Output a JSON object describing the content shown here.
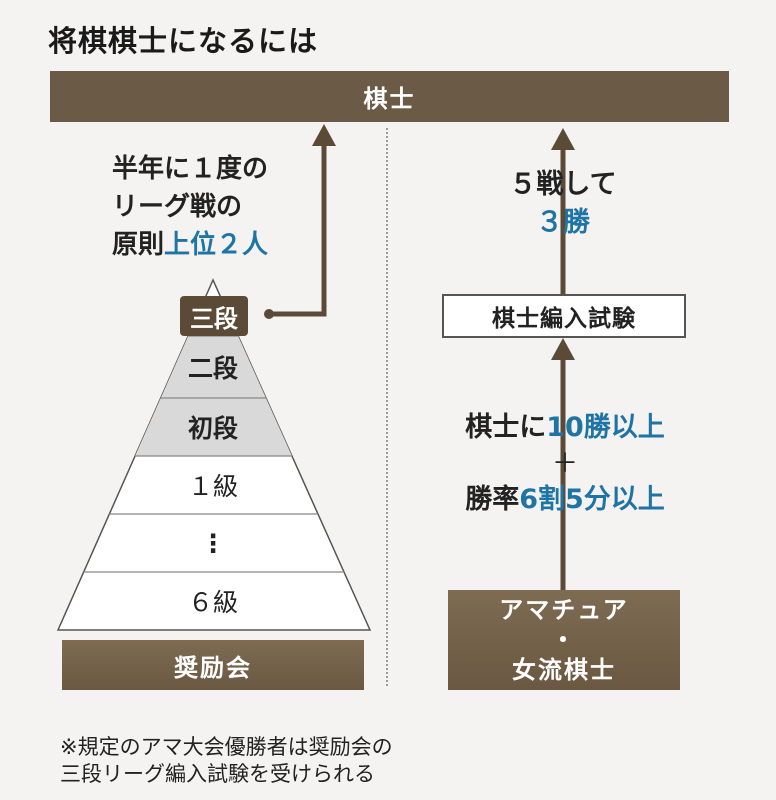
{
  "title": "将棋棋士になるには",
  "top_bar": "棋士",
  "left": {
    "note_lines": [
      "半年に１度の",
      "リーグ戦の"
    ],
    "note_last_prefix": "原則",
    "note_last_highlight": "上位２人",
    "tiers": [
      "三段",
      "二段",
      "初段",
      "１級",
      "⋮",
      "６級"
    ],
    "base": "奨励会"
  },
  "right": {
    "top_line1": "５戦して",
    "top_line2": "３勝",
    "exam": "棋士編入試験",
    "cond1_prefix": "棋士に",
    "cond1_highlight": "10勝以上",
    "plus": "＋",
    "cond2_prefix": "勝率",
    "cond2_highlight": "6割5分以上",
    "base_line1": "アマチュア",
    "base_line2": "・",
    "base_line3": "女流棋士"
  },
  "footnote_lines": [
    "※規定のアマ大会優勝者は奨励会の",
    "三段リーグ編入試験を受けられる"
  ],
  "colors": {
    "brown": "#6b5a45",
    "blue": "#1f74a6",
    "gray_tier": "#d9d9d9"
  }
}
